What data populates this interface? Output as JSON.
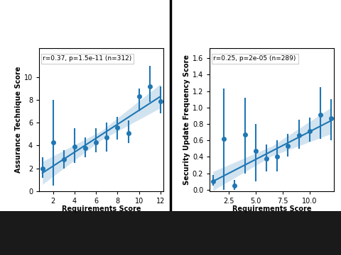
{
  "chart_data": [
    {
      "type": "scatter",
      "x": [
        1,
        2,
        3,
        4,
        5,
        6,
        7,
        8,
        9,
        10,
        11,
        12
      ],
      "values": [
        2.0,
        4.3,
        2.8,
        3.9,
        3.8,
        4.3,
        4.7,
        5.6,
        5.1,
        8.3,
        9.2,
        7.9
      ],
      "lower": [
        1.2,
        0.5,
        2.0,
        2.5,
        3.0,
        3.4,
        3.5,
        4.5,
        4.2,
        7.0,
        7.8,
        6.8
      ],
      "upper": [
        3.0,
        8.0,
        3.6,
        5.5,
        4.7,
        5.5,
        6.0,
        6.5,
        6.2,
        9.0,
        11.0,
        9.2
      ],
      "color": "#1f77b4",
      "marker": "o",
      "x_label": "Requirements Score",
      "y_label": "Assurance Technique Score",
      "annotation": "r=0.37, p=1.5e-11 (n=312)",
      "xlim": [
        0.7,
        12.3
      ],
      "ylim": [
        0,
        12.5
      ],
      "xticks": [
        2,
        4,
        6,
        8,
        10,
        12
      ],
      "yticks": [
        0,
        2,
        4,
        6,
        8,
        10
      ],
      "fit": {
        "x": [
          1,
          6.5,
          12
        ],
        "values": [
          1.6,
          4.95,
          8.3
        ],
        "ci_lower": [
          0.6,
          4.5,
          7.3
        ],
        "ci_upper": [
          2.6,
          5.3,
          9.4
        ]
      }
    },
    {
      "type": "scatter",
      "x": [
        1,
        2,
        3,
        4,
        5,
        6,
        7,
        8,
        9,
        10,
        11,
        12
      ],
      "values": [
        0.1,
        0.62,
        0.05,
        0.67,
        0.47,
        0.38,
        0.4,
        0.53,
        0.66,
        0.71,
        0.91,
        0.87
      ],
      "lower": [
        0.05,
        0.0,
        0.0,
        0.2,
        0.1,
        0.22,
        0.22,
        0.4,
        0.5,
        0.58,
        0.62,
        0.6
      ],
      "upper": [
        0.18,
        1.23,
        0.12,
        1.12,
        0.8,
        0.55,
        0.6,
        0.68,
        0.85,
        0.88,
        1.25,
        1.1
      ],
      "color": "#1f77b4",
      "marker": "o",
      "x_label": "Requirements Score",
      "y_label": "Security Update Frequency Score",
      "annotation": "r=0.25, p=2e-05 (n=289)",
      "xlim": [
        0.7,
        12.3
      ],
      "ylim": [
        -0.02,
        1.72
      ],
      "xticks": [
        2.5,
        5.0,
        7.5,
        10.0
      ],
      "yticks": [
        0.0,
        0.2,
        0.4,
        0.6,
        0.8,
        1.0,
        1.2,
        1.4,
        1.6
      ],
      "fit": {
        "x": [
          1,
          6.5,
          12
        ],
        "values": [
          0.1,
          0.47,
          0.84
        ],
        "ci_lower": [
          -0.01,
          0.41,
          0.68
        ],
        "ci_upper": [
          0.22,
          0.53,
          1.0
        ]
      }
    }
  ]
}
